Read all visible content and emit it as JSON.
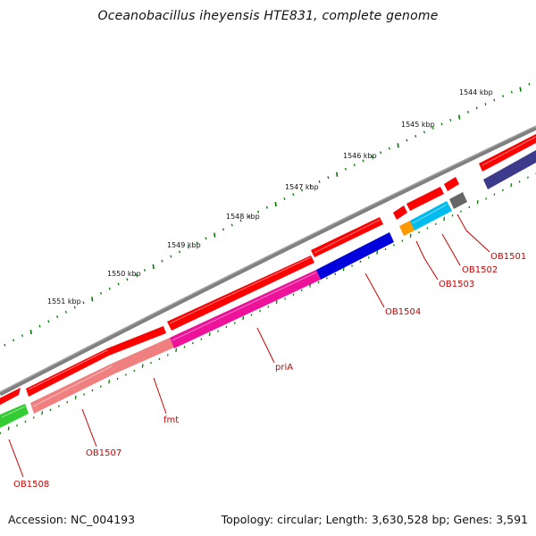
{
  "title": "Oceanobacillus iheyensis HTE831, complete genome",
  "footer": {
    "accession": "Accession: NC_004193",
    "summary": "Topology: circular; Length: 3,630,528 bp; Genes: 3,591"
  },
  "ruler": {
    "unit": "kbp",
    "labels": [
      "1544 kbp",
      "1545 kbp",
      "1546 kbp",
      "1547 kbp",
      "1548 kbp",
      "1549 kbp",
      "1550 kbp",
      "1551 kbp"
    ]
  },
  "genes": [
    {
      "label": "OB1501",
      "color": "#666666"
    },
    {
      "label": "OB1502",
      "color": "#00bbee"
    },
    {
      "label": "OB1503",
      "color": "#ff9900"
    },
    {
      "label": "OB1504",
      "color": "#0000dd"
    },
    {
      "label": "priA",
      "color": "#ee1199"
    },
    {
      "label": "fmt",
      "color": "#f08080"
    },
    {
      "label": "OB1507",
      "color": "#f08080"
    },
    {
      "label": "OB1508",
      "color": "#33cc33"
    }
  ],
  "colors": {
    "backbone": "#808080",
    "cds_arrow": "#ff0000",
    "tick": "#007700",
    "label_text": "#cc0000",
    "unlabeled_feature": "#3c3a8a"
  }
}
